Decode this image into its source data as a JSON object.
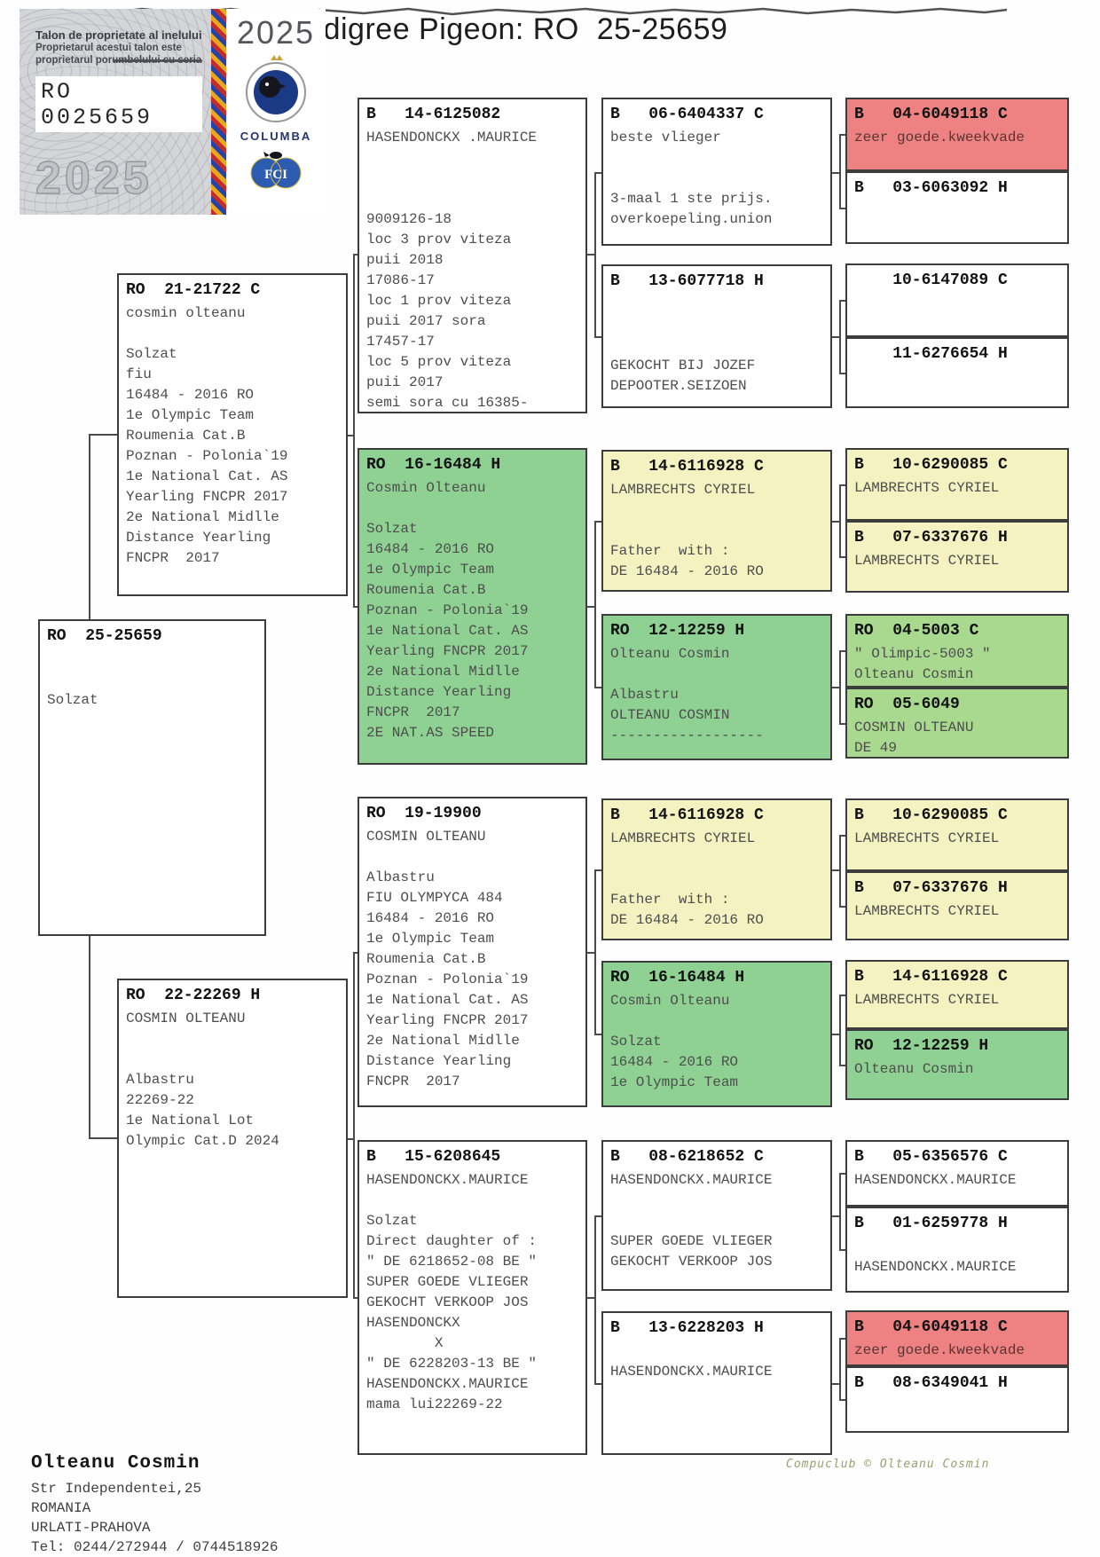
{
  "title": "Pedigree Pigeon: RO  25-25659",
  "stamp": {
    "title": "Talon de proprietate al inelului",
    "sub1": "Proprietarul acestui talon este",
    "sub2": "proprietarul porumbelului cu seria",
    "ring": "RO 0025659",
    "year": "2025",
    "org": "COLUMBA",
    "fci": "FCI"
  },
  "owner": {
    "name": "Olteanu Cosmin",
    "lines": [
      "Str Independentei,25",
      "ROMANIA",
      "URLATI-PRAHOVA",
      "Tel: 0244/272944 / 0744518926"
    ]
  },
  "footer": "Compuclub © Olteanu Cosmin",
  "colors": {
    "green": "#8ed193",
    "green_light": "#a8d98f",
    "yellow": "#f5f2c2",
    "red": "#ee8181",
    "border": "#3c3c3c"
  },
  "boxes": [
    {
      "id": "subject",
      "header": "RO  25-25659",
      "color": "white",
      "lines": [
        "",
        "",
        "Solzat"
      ]
    },
    {
      "id": "sire",
      "header": "RO  21-21722 C",
      "color": "white",
      "lines": [
        "cosmin olteanu",
        "",
        "Solzat",
        "fiu",
        "16484 - 2016 RO",
        "1e Olympic Team",
        "Roumenia Cat.B",
        "Poznan - Polonia`19",
        "1e National Cat. AS",
        "Yearling FNCPR 2017",
        "2e National Midlle",
        "Distance Yearling",
        "FNCPR  2017"
      ]
    },
    {
      "id": "dam",
      "header": "RO  22-22269 H",
      "color": "white",
      "lines": [
        "COSMIN OLTEANU",
        "",
        "",
        "Albastru",
        "22269-22",
        "1e National Lot",
        "Olympic Cat.D 2024"
      ]
    },
    {
      "id": "sire-sire",
      "header": "B   14-6125082",
      "color": "white",
      "lines": [
        "HASENDONCKX .MAURICE",
        "",
        "",
        "",
        "9009126-18",
        "loc 3 prov viteza",
        "puii 2018",
        "17086-17",
        "loc 1 prov viteza",
        "puii 2017 sora",
        "17457-17",
        "loc 5 prov viteza",
        "puii 2017",
        "semi sora cu 16385-"
      ]
    },
    {
      "id": "sire-dam",
      "header": "RO  16-16484 H",
      "color": "green",
      "lines": [
        "Cosmin Olteanu",
        "",
        "Solzat",
        "16484 - 2016 RO",
        "1e Olympic Team",
        "Roumenia Cat.B",
        "Poznan - Polonia`19",
        "1e National Cat. AS",
        "Yearling FNCPR 2017",
        "2e National Midlle",
        "Distance Yearling",
        "FNCPR  2017",
        "2E NAT.AS SPEED"
      ]
    },
    {
      "id": "dam-sire",
      "header": "RO  19-19900",
      "color": "white",
      "lines": [
        "COSMIN OLTEANU",
        "",
        "Albastru",
        "FIU OLYMPYCA 484",
        "16484 - 2016 RO",
        "1e Olympic Team",
        "Roumenia Cat.B",
        "Poznan - Polonia`19",
        "1e National Cat. AS",
        "Yearling FNCPR 2017",
        "2e National Midlle",
        "Distance Yearling",
        "FNCPR  2017"
      ]
    },
    {
      "id": "dam-dam",
      "header": "B   15-6208645",
      "color": "white",
      "lines": [
        "HASENDONCKX.MAURICE",
        "",
        "Solzat",
        "Direct daughter of :",
        "\" DE 6218652-08 BE \"",
        "SUPER GOEDE VLIEGER",
        "GEKOCHT VERKOOP JOS",
        "HASENDONCKX",
        "        X",
        "\" DE 6228203-13 BE \"",
        "HASENDONCKX.MAURICE",
        "mama lui22269-22"
      ]
    },
    {
      "id": "g3-1",
      "header": "B   06-6404337 C",
      "color": "white",
      "lines": [
        "beste vlieger",
        "",
        "",
        "3-maal 1 ste prijs.",
        "overkoepeling.union"
      ]
    },
    {
      "id": "g3-2",
      "header": "B   13-6077718 H",
      "color": "white",
      "lines": [
        "",
        "",
        "",
        "GEKOCHT BIJ JOZEF",
        "DEPOOTER.SEIZOEN"
      ]
    },
    {
      "id": "g3-3",
      "header": "B   14-6116928 C",
      "color": "yellow",
      "lines": [
        "LAMBRECHTS CYRIEL",
        "",
        "",
        "Father  with :",
        "DE 16484 - 2016 RO"
      ]
    },
    {
      "id": "g3-4",
      "header": "RO  12-12259 H",
      "color": "green",
      "lines": [
        "Olteanu Cosmin",
        "",
        "Albastru",
        "OLTEANU COSMIN",
        "------------------"
      ]
    },
    {
      "id": "g3-5",
      "header": "B   14-6116928 C",
      "color": "yellow",
      "lines": [
        "LAMBRECHTS CYRIEL",
        "",
        "",
        "Father  with :",
        "DE 16484 - 2016 RO"
      ]
    },
    {
      "id": "g3-6",
      "header": "RO  16-16484 H",
      "color": "green",
      "lines": [
        "Cosmin Olteanu",
        "",
        "Solzat",
        "16484 - 2016 RO",
        "1e Olympic Team"
      ]
    },
    {
      "id": "g3-7",
      "header": "B   08-6218652 C",
      "color": "white",
      "lines": [
        "HASENDONCKX.MAURICE",
        "",
        "",
        "SUPER GOEDE VLIEGER",
        "GEKOCHT VERKOOP JOS"
      ]
    },
    {
      "id": "g3-8",
      "header": "B   13-6228203 H",
      "color": "white",
      "lines": [
        "",
        "HASENDONCKX.MAURICE"
      ]
    },
    {
      "id": "g4-1",
      "header": "B   04-6049118 C",
      "color": "red",
      "lines": [
        "zeer goede.kweekvade"
      ]
    },
    {
      "id": "g4-2",
      "header": "B   03-6063092 H",
      "color": "white",
      "lines": []
    },
    {
      "id": "g4-3",
      "header": "    10-6147089 C",
      "color": "white",
      "lines": []
    },
    {
      "id": "g4-4",
      "header": "    11-6276654 H",
      "color": "white",
      "lines": []
    },
    {
      "id": "g4-5",
      "header": "B   10-6290085 C",
      "color": "yellow",
      "lines": [
        "LAMBRECHTS CYRIEL"
      ]
    },
    {
      "id": "g4-6",
      "header": "B   07-6337676 H",
      "color": "yellow",
      "lines": [
        "LAMBRECHTS CYRIEL"
      ]
    },
    {
      "id": "g4-7",
      "header": "RO  04-5003 C",
      "color": "green_light",
      "lines": [
        "\" Olimpic-5003 \"",
        "Olteanu Cosmin"
      ]
    },
    {
      "id": "g4-8",
      "header": "RO  05-6049",
      "color": "green_light",
      "lines": [
        "COSMIN OLTEANU",
        "DE 49"
      ]
    },
    {
      "id": "g4-9",
      "header": "B   10-6290085 C",
      "color": "yellow",
      "lines": [
        "LAMBRECHTS CYRIEL"
      ]
    },
    {
      "id": "g4-10",
      "header": "B   07-6337676 H",
      "color": "yellow",
      "lines": [
        "LAMBRECHTS CYRIEL"
      ]
    },
    {
      "id": "g4-11",
      "header": "B   14-6116928 C",
      "color": "yellow",
      "lines": [
        "LAMBRECHTS CYRIEL"
      ]
    },
    {
      "id": "g4-12",
      "header": "RO  12-12259 H",
      "color": "green",
      "lines": [
        "Olteanu Cosmin"
      ]
    },
    {
      "id": "g4-13",
      "header": "B   05-6356576 C",
      "color": "white",
      "lines": [
        "HASENDONCKX.MAURICE"
      ]
    },
    {
      "id": "g4-14",
      "header": "B   01-6259778 H",
      "color": "white",
      "lines": [
        "",
        "HASENDONCKX.MAURICE"
      ]
    },
    {
      "id": "g4-15",
      "header": "B   04-6049118 C",
      "color": "red",
      "lines": [
        "zeer goede.kweekvade"
      ]
    },
    {
      "id": "g4-16",
      "header": "B   08-6349041 H",
      "color": "white",
      "lines": []
    }
  ]
}
